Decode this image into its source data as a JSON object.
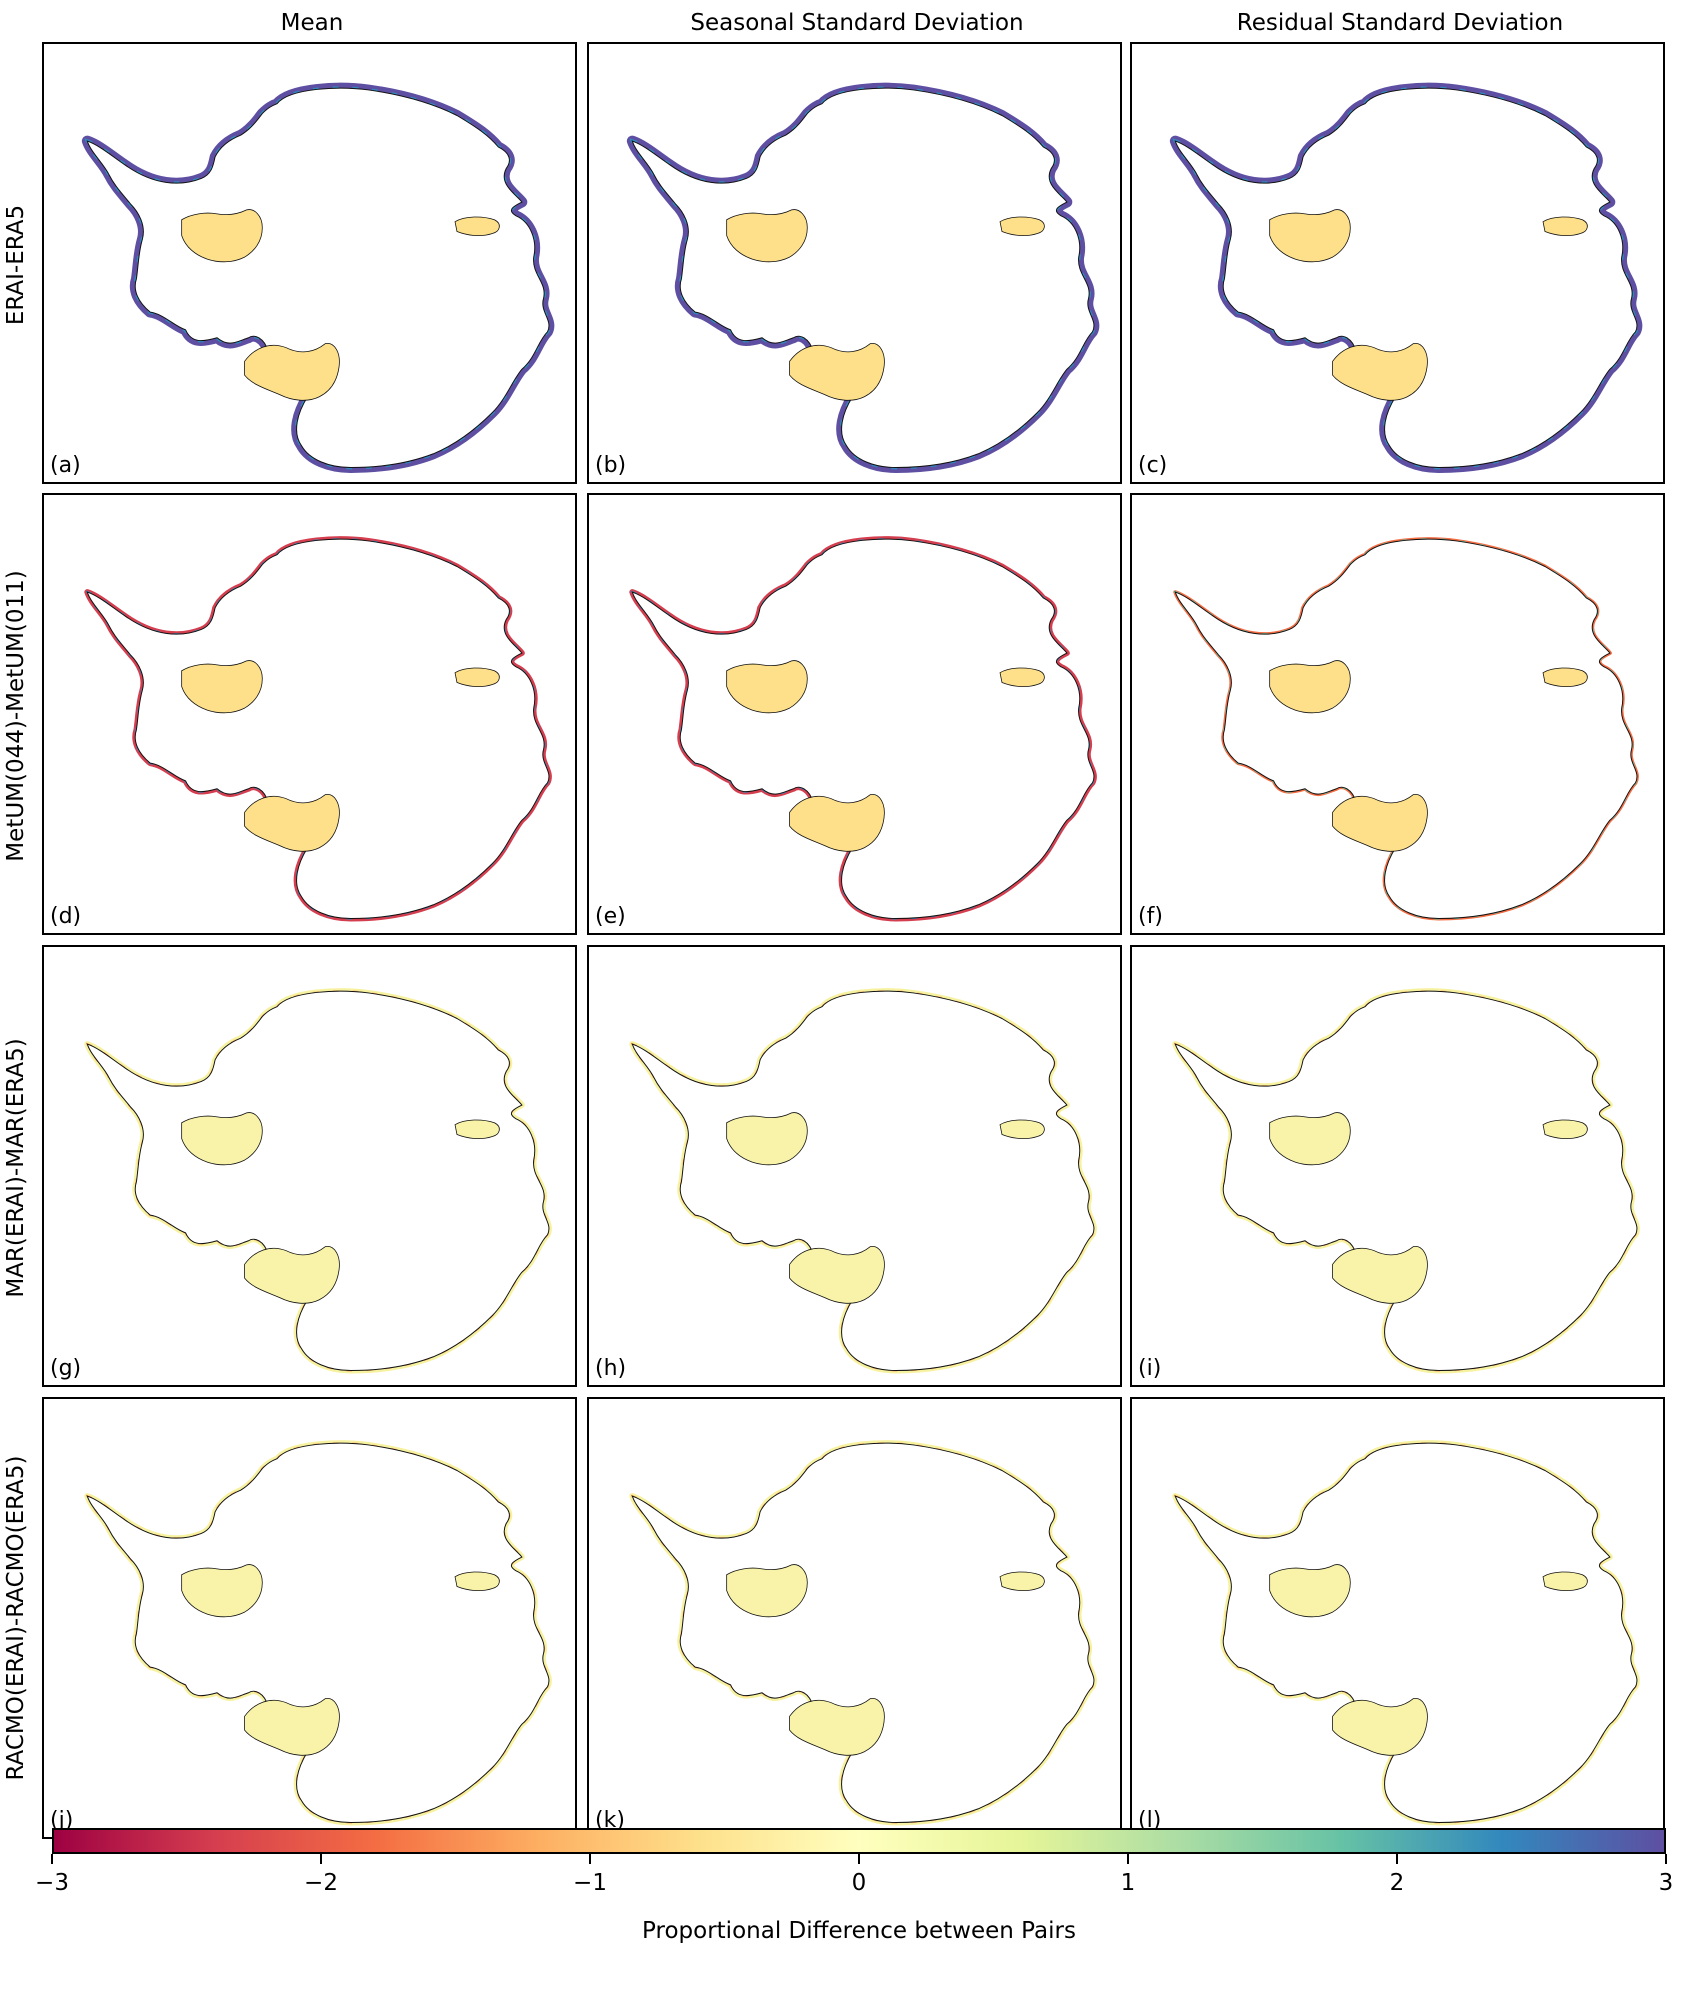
{
  "columns": [
    "Mean",
    "Seasonal Standard Deviation",
    "Residual Standard Deviation"
  ],
  "rows": [
    "ERAI-ERA5",
    "MetUM(044)-MetUM(011)",
    "MAR(ERAI)-MAR(ERA5)",
    "RACMO(ERAI)-RACMO(ERA5)"
  ],
  "panels": [
    {
      "label": "(a)",
      "scheme": "strong-positive"
    },
    {
      "label": "(b)",
      "scheme": "strong-positive"
    },
    {
      "label": "(c)",
      "scheme": "strong-positive"
    },
    {
      "label": "(d)",
      "scheme": "mixed-edge"
    },
    {
      "label": "(e)",
      "scheme": "mixed-edge"
    },
    {
      "label": "(f)",
      "scheme": "mild-mixed"
    },
    {
      "label": "(g)",
      "scheme": "near-zero"
    },
    {
      "label": "(h)",
      "scheme": "near-zero"
    },
    {
      "label": "(i)",
      "scheme": "near-zero"
    },
    {
      "label": "(j)",
      "scheme": "near-zero"
    },
    {
      "label": "(k)",
      "scheme": "near-zero"
    },
    {
      "label": "(l)",
      "scheme": "near-zero"
    }
  ],
  "colorbar": {
    "label": "Proportional Difference between Pairs",
    "ticks": [
      "−3",
      "−2",
      "−1",
      "0",
      "1",
      "2",
      "3"
    ],
    "range": [
      -3,
      3
    ],
    "colormap": "Spectral",
    "colors": [
      "#9e0142",
      "#d53e4f",
      "#f46d43",
      "#fdae61",
      "#fee08b",
      "#ffffbf",
      "#e6f598",
      "#abdda4",
      "#66c2a5",
      "#3288bd",
      "#5e4fa2"
    ]
  }
}
